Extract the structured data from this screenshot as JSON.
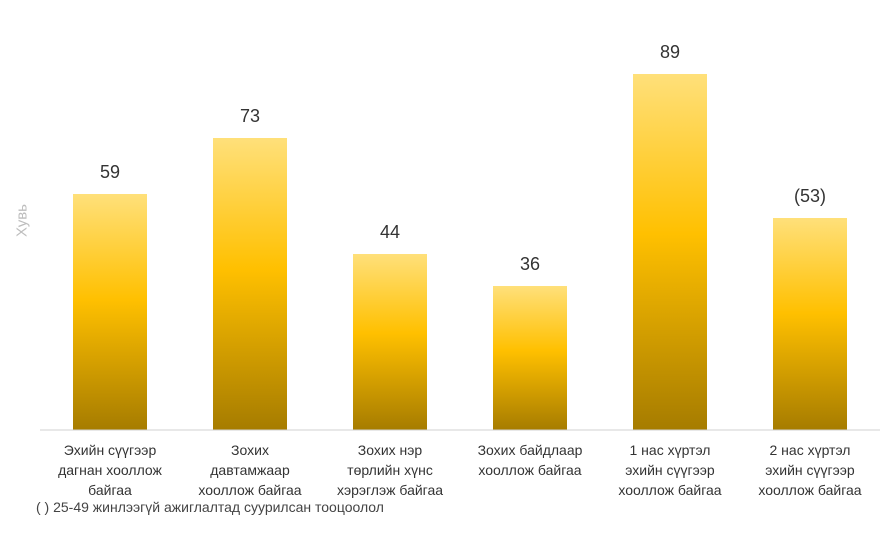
{
  "chart_data": {
    "type": "bar",
    "categories": [
      [
        "Эхийн сүүгээр",
        "дагнан хооллож",
        "байгаа"
      ],
      [
        "Зохих",
        "давтамжаар",
        "хооллож байгаа"
      ],
      [
        "Зохих нэр",
        "төрлийн хүнс",
        "хэрэглэж байгаа"
      ],
      [
        "Зохих байдлаар",
        "хооллож байгаа"
      ],
      [
        "1 нас хүртэл",
        "эхийн сүүгээр",
        "хооллож байгаа"
      ],
      [
        "2 нас хүртэл",
        "эхийн сүүгээр",
        "хооллож байгаа"
      ]
    ],
    "values": [
      59,
      73,
      44,
      36,
      89,
      53
    ],
    "data_labels": [
      "59",
      "73",
      "44",
      "36",
      "89",
      "(53)"
    ],
    "ylabel": "Хувь",
    "ylim": [
      0,
      100
    ],
    "grid": false,
    "bar_gradient": {
      "top": "#FFE07A",
      "middle": "#FFC000",
      "bottom": "#A67C00"
    },
    "axis_color": "#d0d0d0"
  },
  "footnote": "( ) 25-49 жинлээгүй ажиглалтад суурилсан тооцоолол"
}
